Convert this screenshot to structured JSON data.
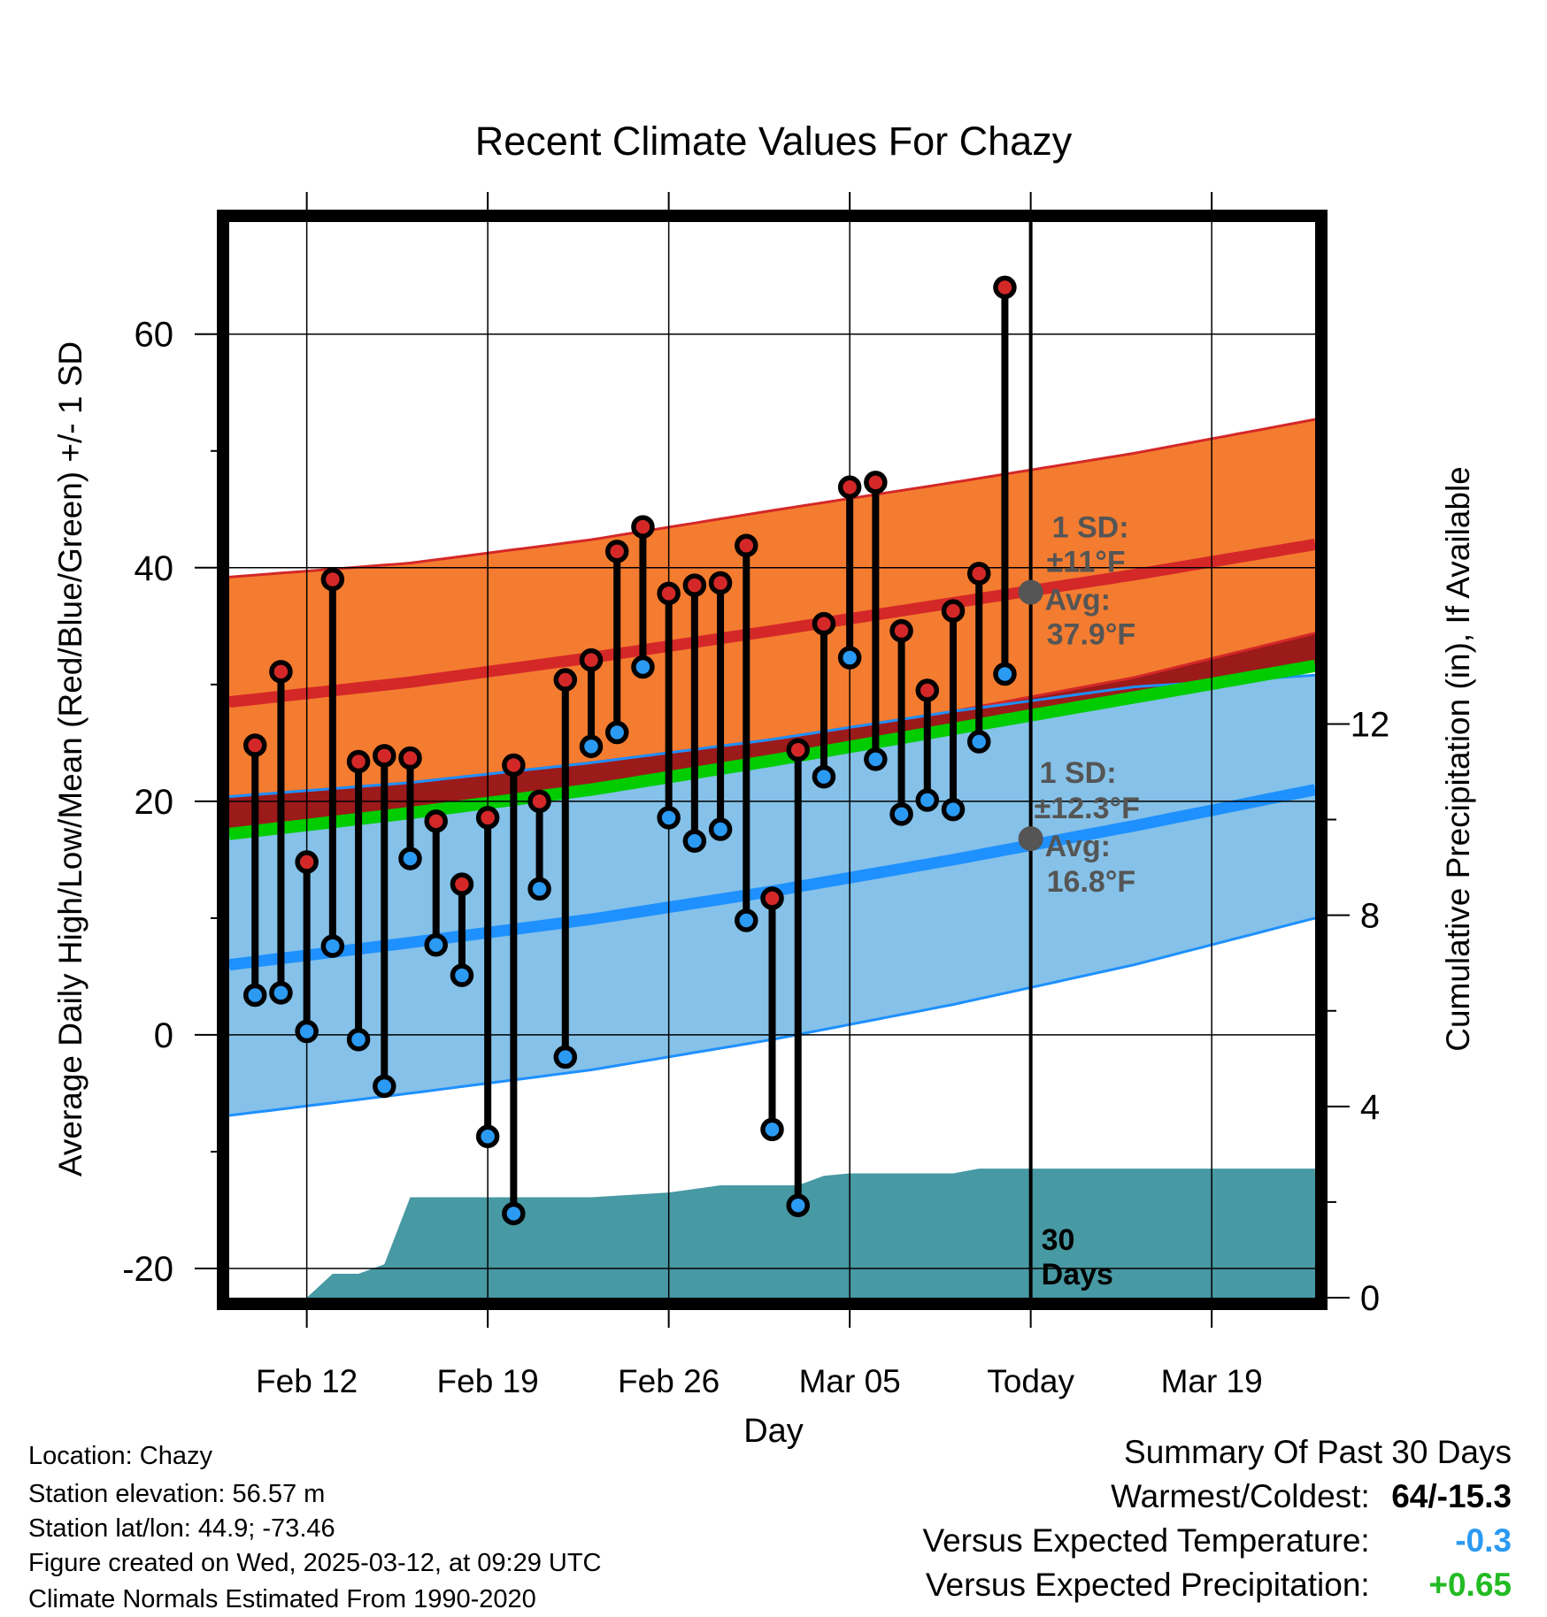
{
  "chart_data": {
    "type": "line",
    "title": "Recent Climate Values For Chazy",
    "xlabel": "Day",
    "ylabel": "Average Daily High/Low/Mean (Red/Blue/Green) +/- 1 SD",
    "y2label": "Cumulative Precipitation (in), If Available",
    "xlim": [
      "2025-02-09",
      "2025-03-23"
    ],
    "ylim": [
      -22.5,
      69.6
    ],
    "y2lim": [
      0,
      22.5
    ],
    "x_ticks": [
      {
        "date": "2025-02-12",
        "label": "Feb 12"
      },
      {
        "date": "2025-02-19",
        "label": "Feb 19"
      },
      {
        "date": "2025-02-26",
        "label": "Feb 26"
      },
      {
        "date": "2025-03-05",
        "label": "Mar 05"
      },
      {
        "date": "2025-03-12",
        "label": "Today"
      },
      {
        "date": "2025-03-19",
        "label": "Mar 19"
      }
    ],
    "y_ticks": [
      -20,
      0,
      20,
      40,
      60
    ],
    "y2_ticks": [
      0,
      4,
      8,
      12
    ],
    "grid": true,
    "today": "2025-03-12",
    "observed": [
      {
        "date": "2025-02-10",
        "high": 24.8,
        "low": 3.4
      },
      {
        "date": "2025-02-11",
        "high": 31.1,
        "low": 3.6
      },
      {
        "date": "2025-02-12",
        "high": 14.8,
        "low": 0.3
      },
      {
        "date": "2025-02-13",
        "high": 39.0,
        "low": 7.6
      },
      {
        "date": "2025-02-14",
        "high": 23.4,
        "low": -0.4
      },
      {
        "date": "2025-02-15",
        "high": 23.9,
        "low": -4.4
      },
      {
        "date": "2025-02-16",
        "high": 23.7,
        "low": 15.1
      },
      {
        "date": "2025-02-17",
        "high": 18.3,
        "low": 7.7
      },
      {
        "date": "2025-02-18",
        "high": 12.9,
        "low": 5.1
      },
      {
        "date": "2025-02-19",
        "high": 18.6,
        "low": -8.7
      },
      {
        "date": "2025-02-20",
        "high": 23.1,
        "low": -15.3
      },
      {
        "date": "2025-02-21",
        "high": 20.0,
        "low": 12.5
      },
      {
        "date": "2025-02-22",
        "high": 30.4,
        "low": -1.9
      },
      {
        "date": "2025-02-23",
        "high": 32.1,
        "low": 24.7
      },
      {
        "date": "2025-02-24",
        "high": 41.4,
        "low": 25.9
      },
      {
        "date": "2025-02-25",
        "high": 43.5,
        "low": 31.5
      },
      {
        "date": "2025-02-26",
        "high": 37.8,
        "low": 18.6
      },
      {
        "date": "2025-02-27",
        "high": 38.5,
        "low": 16.6
      },
      {
        "date": "2025-02-28",
        "high": 38.7,
        "low": 17.6
      },
      {
        "date": "2025-03-01",
        "high": 41.9,
        "low": 9.8
      },
      {
        "date": "2025-03-02",
        "high": 11.7,
        "low": -8.1
      },
      {
        "date": "2025-03-03",
        "high": 24.4,
        "low": -14.6
      },
      {
        "date": "2025-03-04",
        "high": 35.2,
        "low": 22.1
      },
      {
        "date": "2025-03-05",
        "high": 46.9,
        "low": 32.3
      },
      {
        "date": "2025-03-06",
        "high": 47.3,
        "low": 23.6
      },
      {
        "date": "2025-03-07",
        "high": 34.6,
        "low": 18.9
      },
      {
        "date": "2025-03-08",
        "high": 29.5,
        "low": 20.1
      },
      {
        "date": "2025-03-09",
        "high": 36.3,
        "low": 19.3
      },
      {
        "date": "2025-03-10",
        "high": 39.5,
        "low": 25.1
      },
      {
        "date": "2025-03-11",
        "high": 64.0,
        "low": 30.9
      }
    ],
    "normals": {
      "dates": [
        "2025-02-09",
        "2025-02-16",
        "2025-02-23",
        "2025-03-02",
        "2025-03-09",
        "2025-03-16",
        "2025-03-23"
      ],
      "high_avg": [
        28.5,
        30.2,
        32.3,
        34.6,
        37.0,
        39.4,
        42.0
      ],
      "high_sd_upper": [
        39.2,
        40.4,
        42.4,
        44.9,
        47.3,
        49.8,
        52.7
      ],
      "high_sd_lower": [
        20.4,
        21.6,
        23.3,
        25.3,
        27.7,
        30.6,
        34.4
      ],
      "low_avg": [
        6.0,
        7.9,
        9.9,
        12.3,
        15.0,
        17.9,
        21.0
      ],
      "low_sd_upper": [
        20.4,
        21.6,
        23.3,
        25.3,
        27.7,
        29.8,
        30.8
      ],
      "low_sd_lower": [
        -6.9,
        -5.0,
        -3.0,
        -0.4,
        2.6,
        6.0,
        10.0
      ],
      "mean_avg": [
        17.2,
        19.0,
        21.0,
        23.5,
        26.2,
        28.9,
        31.6
      ]
    },
    "precip_cumulative": [
      {
        "date": "2025-02-09",
        "value": 0.0
      },
      {
        "date": "2025-02-12",
        "value": 0.0
      },
      {
        "date": "2025-02-13",
        "value": 0.5
      },
      {
        "date": "2025-02-14",
        "value": 0.5
      },
      {
        "date": "2025-02-15",
        "value": 0.7
      },
      {
        "date": "2025-02-16",
        "value": 2.1
      },
      {
        "date": "2025-02-23",
        "value": 2.1
      },
      {
        "date": "2025-02-26",
        "value": 2.2
      },
      {
        "date": "2025-02-28",
        "value": 2.35
      },
      {
        "date": "2025-03-03",
        "value": 2.35
      },
      {
        "date": "2025-03-04",
        "value": 2.55
      },
      {
        "date": "2025-03-05",
        "value": 2.6
      },
      {
        "date": "2025-03-09",
        "value": 2.6
      },
      {
        "date": "2025-03-10",
        "value": 2.7
      },
      {
        "date": "2025-03-23",
        "value": 2.7
      }
    ],
    "annotations": {
      "high": {
        "sd_label": "1 SD:",
        "sd_value": "±11°F",
        "avg_label": "Avg:",
        "avg_value": "37.9°F",
        "avg": 37.9
      },
      "low": {
        "sd_label": "1 SD:",
        "sd_value": "±12.3°F",
        "avg_label": "Avg:",
        "avg_value": "16.8°F",
        "avg": 16.8
      },
      "window_number": "30",
      "window_unit": "Days"
    },
    "colors": {
      "high_band": "#f47c30",
      "high_line": "#d42828",
      "low_band": "#85c1e8",
      "low_line": "#1e90ff",
      "overlap": "#9b1a1a",
      "mean_line": "#00cc00",
      "precip": "#4799a3",
      "high_marker": "#d42828",
      "low_marker": "#2b9af3",
      "avg_marker": "#555555"
    }
  },
  "footer": {
    "location": "Location: Chazy",
    "elevation": "Station elevation: 56.57 m",
    "latlon": "Station lat/lon: 44.9; -73.46",
    "created": "Figure created on Wed, 2025-03-12, at 09:29 UTC",
    "normals": "Climate Normals Estimated From 1990-2020"
  },
  "summary": {
    "title": "Summary Of Past 30 Days",
    "warm_cold_label": "Warmest/Coldest:",
    "warm_cold_value": "64/-15.3",
    "temp_label": "Versus Expected Temperature:",
    "temp_value": "-0.3",
    "temp_color": "#2b9af3",
    "precip_label": "Versus Expected Precipitation:",
    "precip_value": "+0.65",
    "precip_color": "#22bb22"
  }
}
